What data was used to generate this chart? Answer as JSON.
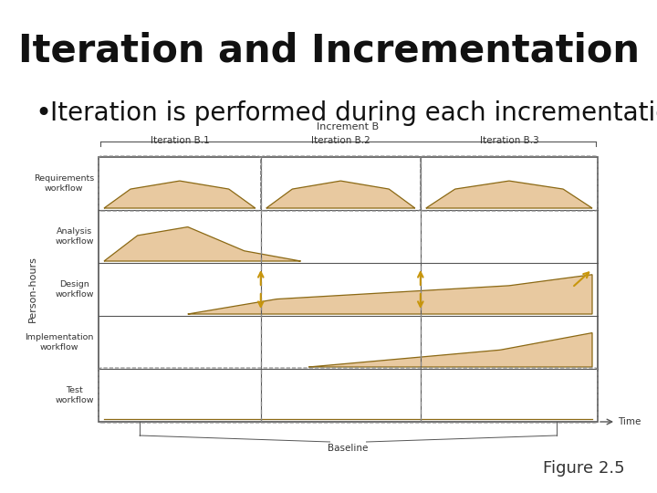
{
  "title": "Iteration and Incrementation",
  "bullet": "Iteration is performed during each incrementation",
  "figure_label": "Figure 2.5",
  "bg_color": "#ffffff",
  "title_fontsize": 30,
  "bullet_fontsize": 20,
  "fig_label_fontsize": 13,
  "diagram": {
    "workflows": [
      "Requirements\nworkflow",
      "Analysis\nworkflow",
      "Design\nworkflow",
      "Implementation\nworkflow",
      "Test\nworkflow"
    ],
    "iteration_labels": [
      "Iteration B.1",
      "Iteration B.2",
      "Iteration B.3"
    ],
    "increment_label": "Increment B",
    "baseline_label": "Baseline",
    "time_label": "Time",
    "ylabel": "Person-hours",
    "fill_color": "#e8c9a0",
    "line_color": "#8B6914",
    "arrow_color": "#c8960c",
    "border_color": "#555555",
    "dashed_color": "#888888"
  }
}
